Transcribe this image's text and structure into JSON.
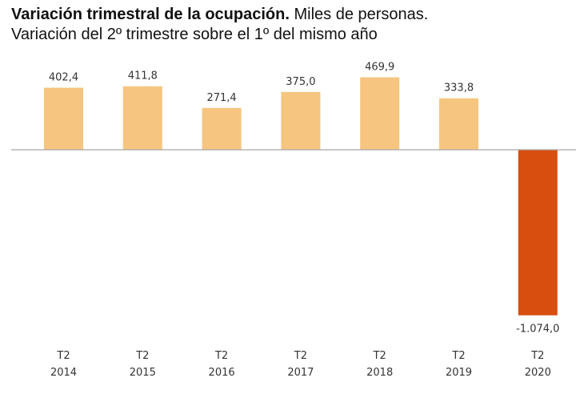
{
  "chart_data": {
    "type": "bar",
    "title_bold": "Variación trimestral de la ocupación.",
    "title_rest": " Miles de personas.",
    "subtitle": "Variación del 2º trimestre sobre el 1º del mismo año",
    "categories": [
      [
        "T2",
        "2014"
      ],
      [
        "T2",
        "2015"
      ],
      [
        "T2",
        "2016"
      ],
      [
        "T2",
        "2017"
      ],
      [
        "T2",
        "2018"
      ],
      [
        "T2",
        "2019"
      ],
      [
        "T2",
        "2020"
      ]
    ],
    "values": [
      402.4,
      411.8,
      271.4,
      375.0,
      469.9,
      333.8,
      -1074.0
    ],
    "data_labels": [
      "402,4",
      "411,8",
      "271,4",
      "375,0",
      "469,9",
      "333,8",
      "-1.074,0"
    ],
    "xlabel": "",
    "ylabel": "",
    "ylim": [
      -1074.0,
      469.9
    ],
    "grid": false,
    "colors": {
      "positive": "#F6C580",
      "negative": "#D84E0E",
      "axis": "#A6A6A6"
    }
  }
}
